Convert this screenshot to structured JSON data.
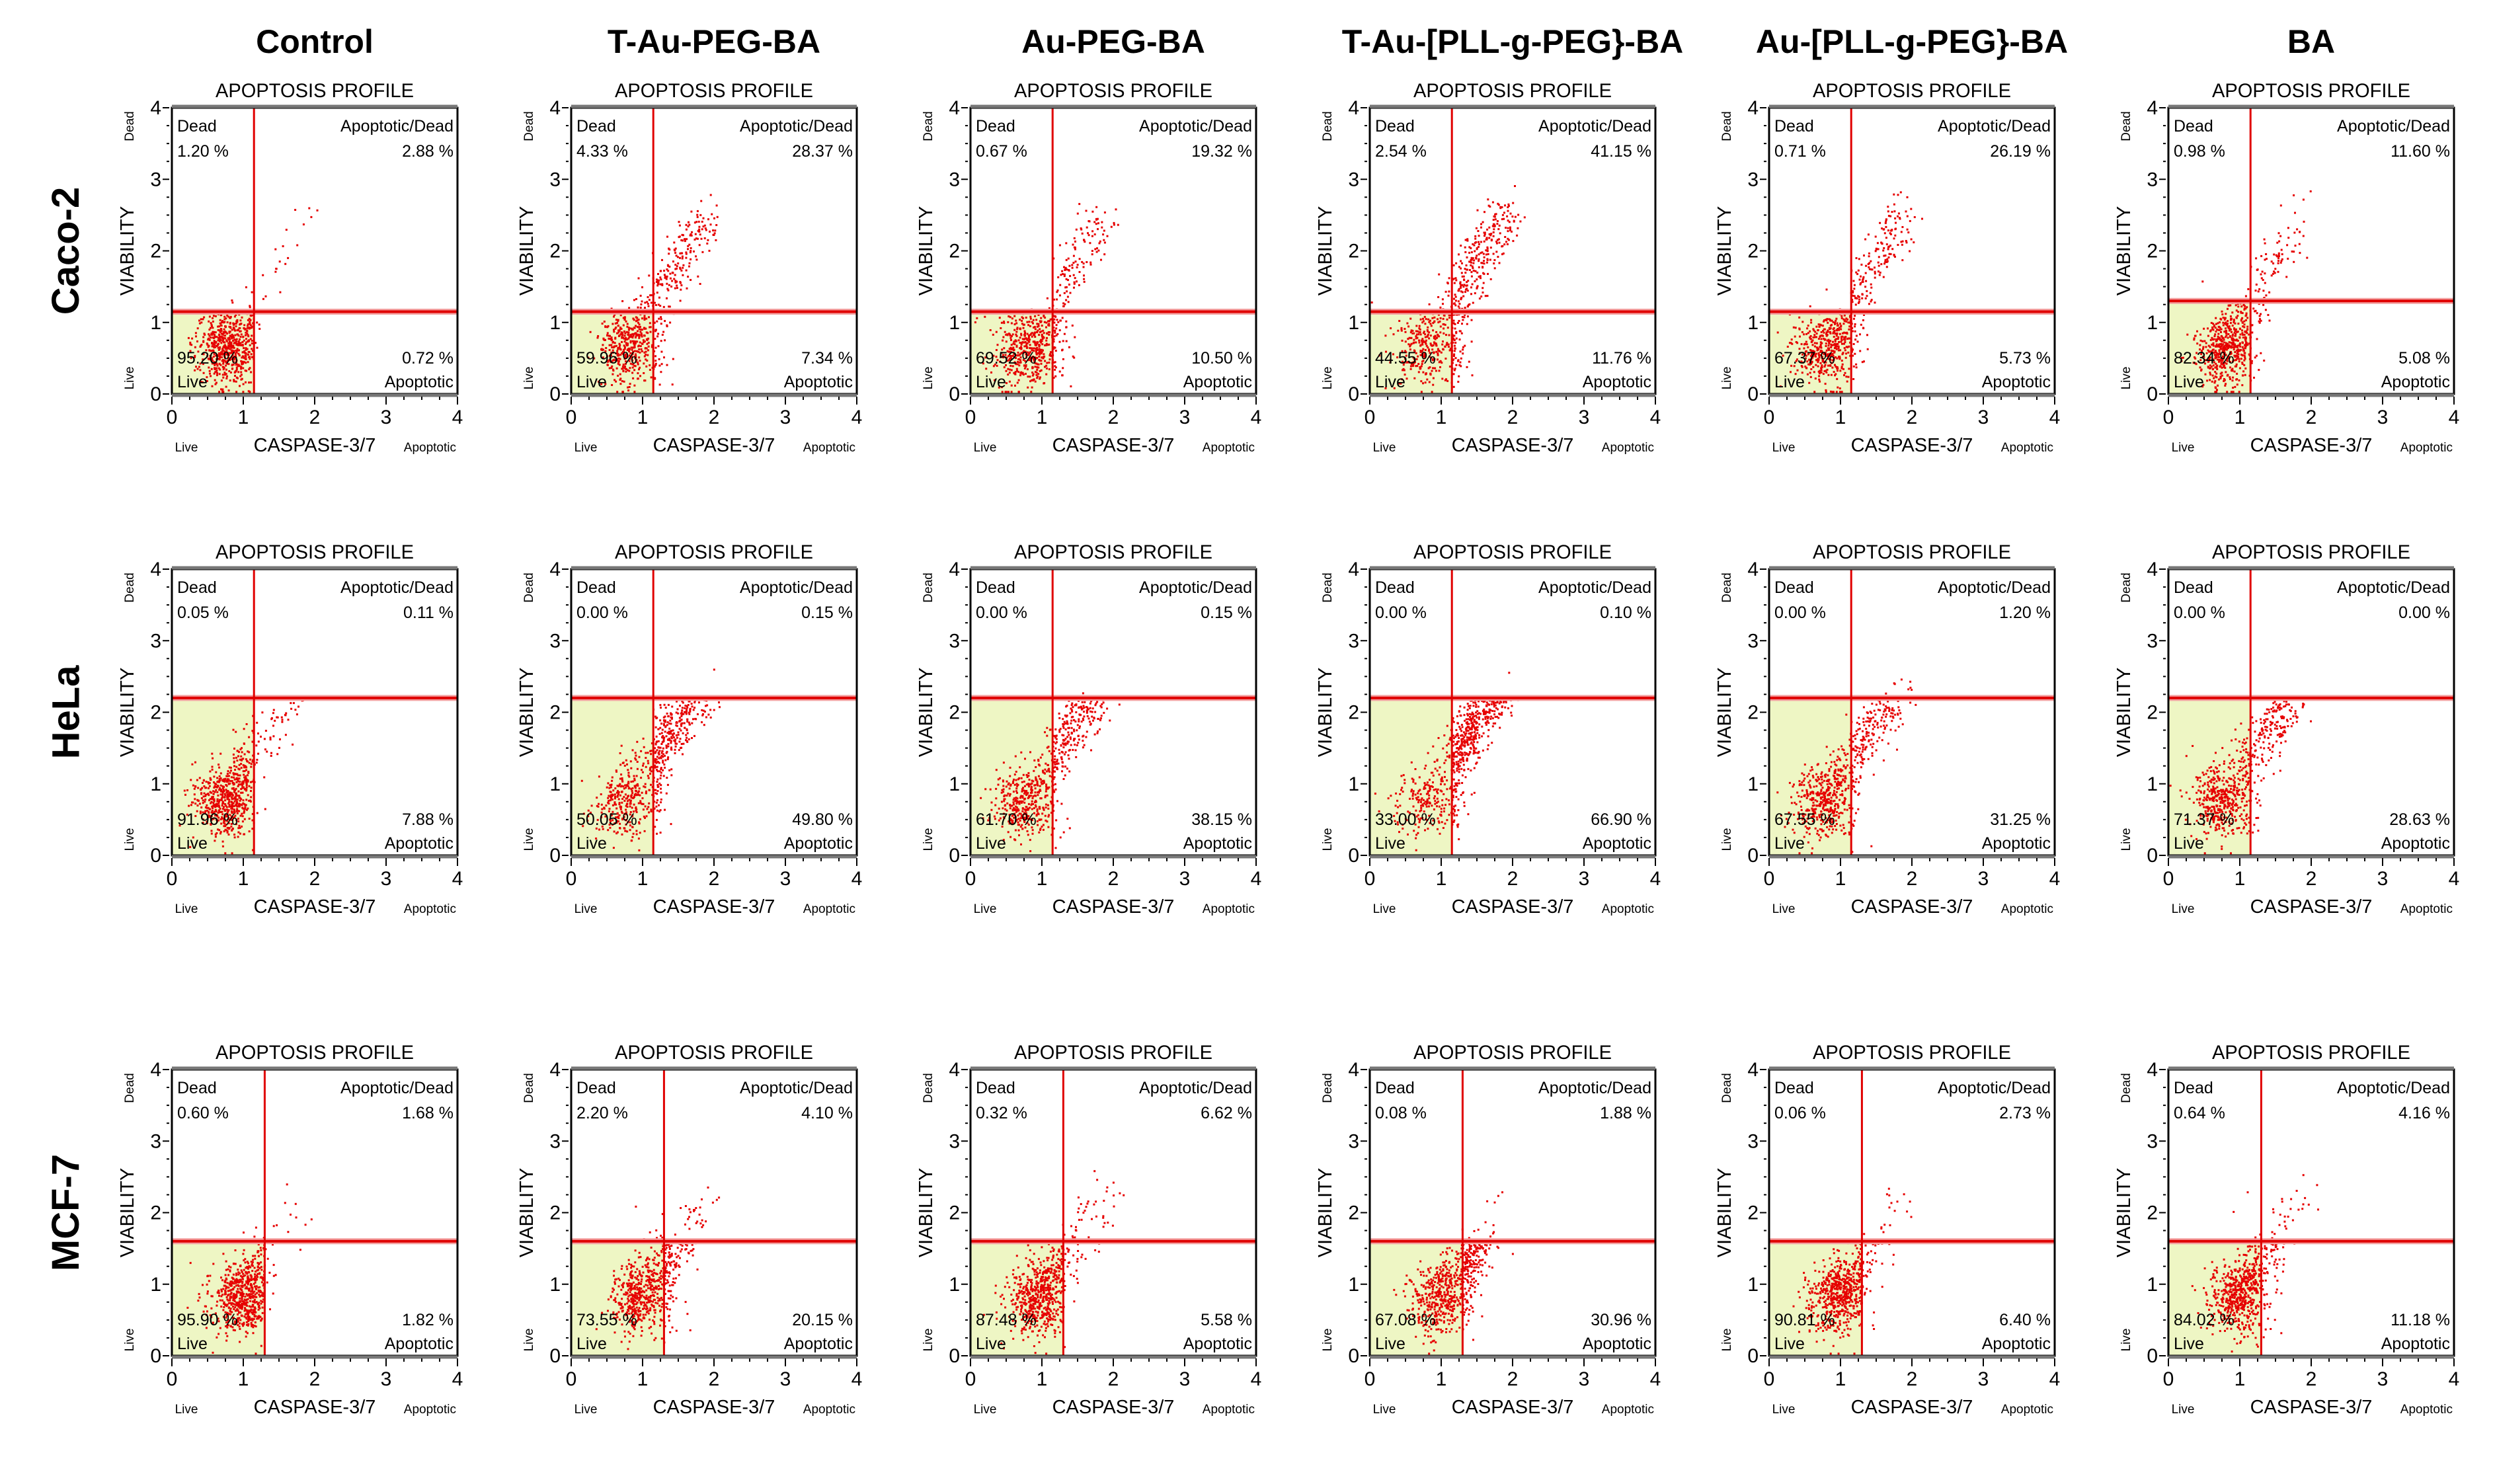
{
  "columns": [
    "Control",
    "T-Au-PEG-BA",
    "Au-PEG-BA",
    "T-Au-[PLL-g-PEG}-BA",
    "Au-[PLL-g-PEG}-BA",
    "BA"
  ],
  "rows": [
    "Caco-2",
    "HeLa",
    "MCF-7"
  ],
  "panel_labels": {
    "title": "APOPTOSIS PROFILE",
    "xlabel": "CASPASE-3/7",
    "x_low": "Live",
    "x_high": "Apoptotic",
    "ylabel": "VIABILITY",
    "y_low": "Live",
    "y_high": "Dead",
    "q_dead": "Dead",
    "q_apoptotic_dead": "Apoptotic/Dead",
    "q_live": "Live",
    "q_apoptotic": "Apoptotic"
  },
  "chart_data": {
    "type": "scatter",
    "title": "APOPTOSIS PROFILE",
    "xlabel": "CASPASE-3/7",
    "ylabel": "VIABILITY",
    "xlim": [
      0,
      4
    ],
    "ylim": [
      0,
      4
    ],
    "xticks": [
      0,
      1,
      2,
      3,
      4
    ],
    "yticks": [
      0,
      1,
      2,
      3,
      4
    ],
    "grid": false,
    "colors": {
      "points": "#e60000",
      "gate": "#e00000",
      "live_fill": "#eef6c4",
      "frame": "#000000"
    },
    "panels": [
      {
        "row": 0,
        "col": 0,
        "gate_x": 1.15,
        "gate_y": 1.15,
        "dead": "1.20 %",
        "apoptotic_dead": "2.88 %",
        "live": "95.20 %",
        "apoptotic": "0.72 %"
      },
      {
        "row": 0,
        "col": 1,
        "gate_x": 1.15,
        "gate_y": 1.15,
        "dead": "4.33 %",
        "apoptotic_dead": "28.37 %",
        "live": "59.96 %",
        "apoptotic": "7.34 %"
      },
      {
        "row": 0,
        "col": 2,
        "gate_x": 1.15,
        "gate_y": 1.15,
        "dead": "0.67 %",
        "apoptotic_dead": "19.32 %",
        "live": "69.52 %",
        "apoptotic": "10.50 %"
      },
      {
        "row": 0,
        "col": 3,
        "gate_x": 1.15,
        "gate_y": 1.15,
        "dead": "2.54 %",
        "apoptotic_dead": "41.15 %",
        "live": "44.55 %",
        "apoptotic": "11.76 %"
      },
      {
        "row": 0,
        "col": 4,
        "gate_x": 1.15,
        "gate_y": 1.15,
        "dead": "0.71 %",
        "apoptotic_dead": "26.19 %",
        "live": "67.37 %",
        "apoptotic": "5.73 %"
      },
      {
        "row": 0,
        "col": 5,
        "gate_x": 1.15,
        "gate_y": 1.3,
        "dead": "0.98 %",
        "apoptotic_dead": "11.60 %",
        "live": "82.34 %",
        "apoptotic": "5.08 %"
      },
      {
        "row": 1,
        "col": 0,
        "gate_x": 1.15,
        "gate_y": 2.2,
        "dead": "0.05 %",
        "apoptotic_dead": "0.11 %",
        "live": "91.96 %",
        "apoptotic": "7.88 %"
      },
      {
        "row": 1,
        "col": 1,
        "gate_x": 1.15,
        "gate_y": 2.2,
        "dead": "0.00 %",
        "apoptotic_dead": "0.15 %",
        "live": "50.05 %",
        "apoptotic": "49.80 %"
      },
      {
        "row": 1,
        "col": 2,
        "gate_x": 1.15,
        "gate_y": 2.2,
        "dead": "0.00 %",
        "apoptotic_dead": "0.15 %",
        "live": "61.70 %",
        "apoptotic": "38.15 %"
      },
      {
        "row": 1,
        "col": 3,
        "gate_x": 1.15,
        "gate_y": 2.2,
        "dead": "0.00 %",
        "apoptotic_dead": "0.10 %",
        "live": "33.00 %",
        "apoptotic": "66.90 %"
      },
      {
        "row": 1,
        "col": 4,
        "gate_x": 1.15,
        "gate_y": 2.2,
        "dead": "0.00 %",
        "apoptotic_dead": "1.20 %",
        "live": "67.55 %",
        "apoptotic": "31.25 %"
      },
      {
        "row": 1,
        "col": 5,
        "gate_x": 1.15,
        "gate_y": 2.2,
        "dead": "0.00 %",
        "apoptotic_dead": "0.00 %",
        "live": "71.37 %",
        "apoptotic": "28.63 %"
      },
      {
        "row": 2,
        "col": 0,
        "gate_x": 1.3,
        "gate_y": 1.6,
        "dead": "0.60 %",
        "apoptotic_dead": "1.68 %",
        "live": "95.90 %",
        "apoptotic": "1.82 %"
      },
      {
        "row": 2,
        "col": 1,
        "gate_x": 1.3,
        "gate_y": 1.6,
        "dead": "2.20 %",
        "apoptotic_dead": "4.10 %",
        "live": "73.55 %",
        "apoptotic": "20.15 %"
      },
      {
        "row": 2,
        "col": 2,
        "gate_x": 1.3,
        "gate_y": 1.6,
        "dead": "0.32 %",
        "apoptotic_dead": "6.62 %",
        "live": "87.48 %",
        "apoptotic": "5.58 %"
      },
      {
        "row": 2,
        "col": 3,
        "gate_x": 1.3,
        "gate_y": 1.6,
        "dead": "0.08 %",
        "apoptotic_dead": "1.88 %",
        "live": "67.08 %",
        "apoptotic": "30.96 %"
      },
      {
        "row": 2,
        "col": 4,
        "gate_x": 1.3,
        "gate_y": 1.6,
        "dead": "0.06 %",
        "apoptotic_dead": "2.73 %",
        "live": "90.81 %",
        "apoptotic": "6.40 %"
      },
      {
        "row": 2,
        "col": 5,
        "gate_x": 1.3,
        "gate_y": 1.6,
        "dead": "0.64 %",
        "apoptotic_dead": "4.16 %",
        "live": "84.02 %",
        "apoptotic": "11.18 %"
      }
    ]
  }
}
